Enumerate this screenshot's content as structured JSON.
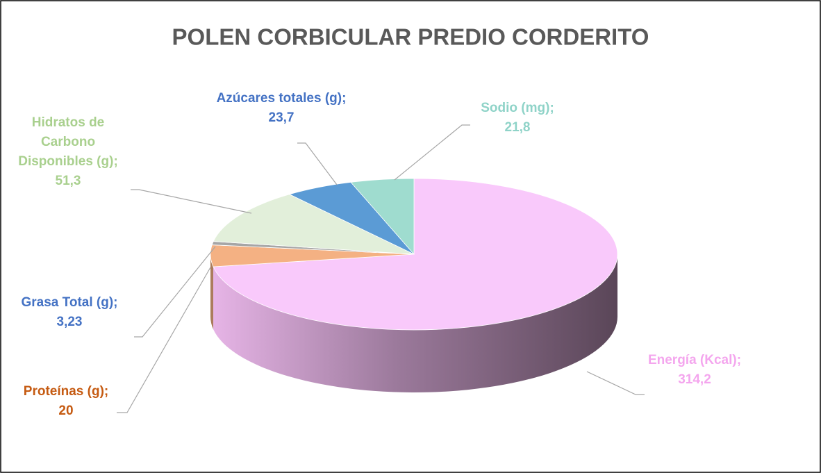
{
  "chart_data": {
    "type": "pie3d",
    "title": "POLEN CORBICULAR PREDIO CORDERITO",
    "categories": [
      "Energía (Kcal)",
      "Proteínas (g)",
      "Grasa  Total (g)",
      "Hidratos de Carbono Disponibles (g)",
      "Azúcares totales (g)",
      "Sodio (mg)"
    ],
    "values": [
      314.2,
      20,
      3.23,
      51.3,
      23.7,
      21.8
    ],
    "value_labels": [
      "314,2",
      "20",
      "3,23",
      "51,3",
      "23,7",
      "21,8"
    ],
    "label_separator": ";",
    "colors": [
      "#f9c9fb",
      "#f4b183",
      "#a6a6a6",
      "#e2efda",
      "#5b9bd5",
      "#9fdccf"
    ],
    "label_colors": [
      "#f4a6ee",
      "#c55a11",
      "#4472c4",
      "#a9d08e",
      "#4472c4",
      "#8fd3c8"
    ]
  }
}
